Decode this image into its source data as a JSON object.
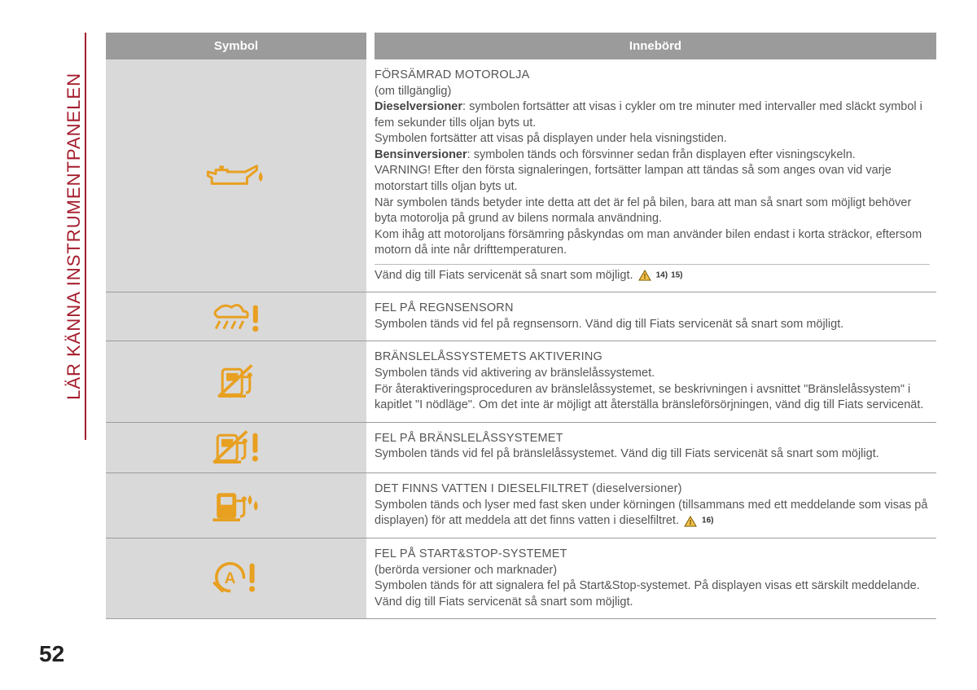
{
  "page_number": "52",
  "side_title": "LÄR KÄNNA INSTRUMENTPANELEN",
  "colors": {
    "accent_red": "#a51d2d",
    "header_gray": "#9b9b9b",
    "cell_gray": "#d9d9d9",
    "icon_amber": "#e8a021",
    "text": "#555555"
  },
  "headers": {
    "symbol": "Symbol",
    "meaning": "Innebörd"
  },
  "rows": [
    {
      "icon": "oil-can",
      "title": "FÖRSÄMRAD MOTOROLJA",
      "sub": "(om tillgänglig)",
      "body_html": "<b>Dieselversioner</b>: symbolen fortsätter att visas i cykler om tre minuter med intervaller med släckt symbol i fem sekunder tills oljan byts ut.<br>Symbolen fortsätter att visas på displayen under hela visningstiden.<br><b>Bensinversioner</b>: symbolen tänds och försvinner sedan från displayen efter visningscykeln.<br>VARNING! Efter den första signaleringen, fortsätter lampan att tändas så som anges ovan vid varje motorstart tills oljan byts ut.<br>När symbolen tänds betyder inte detta att det är fel på bilen, bara att man så snart som möjligt behöver byta motorolja på grund av bilens normala användning.<br>Kom ihåg att motoroljans försämring påskyndas om man använder bilen endast i korta sträckor, eftersom motorn då inte når drifttemperaturen.",
      "footer": "Vänd dig till Fiats servicenät så snart som möjligt.",
      "refs": [
        "14)",
        "15)"
      ]
    },
    {
      "icon": "rain-sensor",
      "title": "FEL PÅ REGNSENSORN",
      "body_html": "Symbolen tänds vid fel på regnsensorn. Vänd dig till Fiats servicenät så snart som möjligt."
    },
    {
      "icon": "fuel-cutoff",
      "title": "BRÄNSLELÅSSYSTEMETS AKTIVERING",
      "body_html": "Symbolen tänds vid aktivering av bränslelåssystemet.<br>För återaktiveringsproceduren av bränslelåssystemet, se beskrivningen i avsnittet \"Bränslelåssystem\" i kapitlet \"I nödläge\". Om det inte är möjligt att återställa bränsleförsörjningen, vänd dig till Fiats servicenät."
    },
    {
      "icon": "fuel-cutoff-fault",
      "title": "FEL PÅ BRÄNSLELÅSSYSTEMET",
      "body_html": "Symbolen tänds vid fel på bränslelåssystemet. Vänd dig till Fiats servicenät så snart som möjligt."
    },
    {
      "icon": "water-in-diesel",
      "title": "DET FINNS VATTEN I DIESELFILTRET (dieselversioner)",
      "body_html": "Symbolen tänds och lyser med fast sken under körningen (tillsammans med ett meddelande som visas på displayen) för att meddela att det finns vatten i dieselfiltret.",
      "refs_inline": [
        "16)"
      ]
    },
    {
      "icon": "start-stop-fault",
      "title": "FEL PÅ START&STOP-SYSTEMET",
      "sub": "(berörda versioner och marknader)",
      "body_html": "Symbolen tänds för att signalera fel på Start&Stop-systemet. På displayen visas ett särskilt meddelande. Vänd dig till Fiats servicenät så snart som möjligt."
    }
  ]
}
